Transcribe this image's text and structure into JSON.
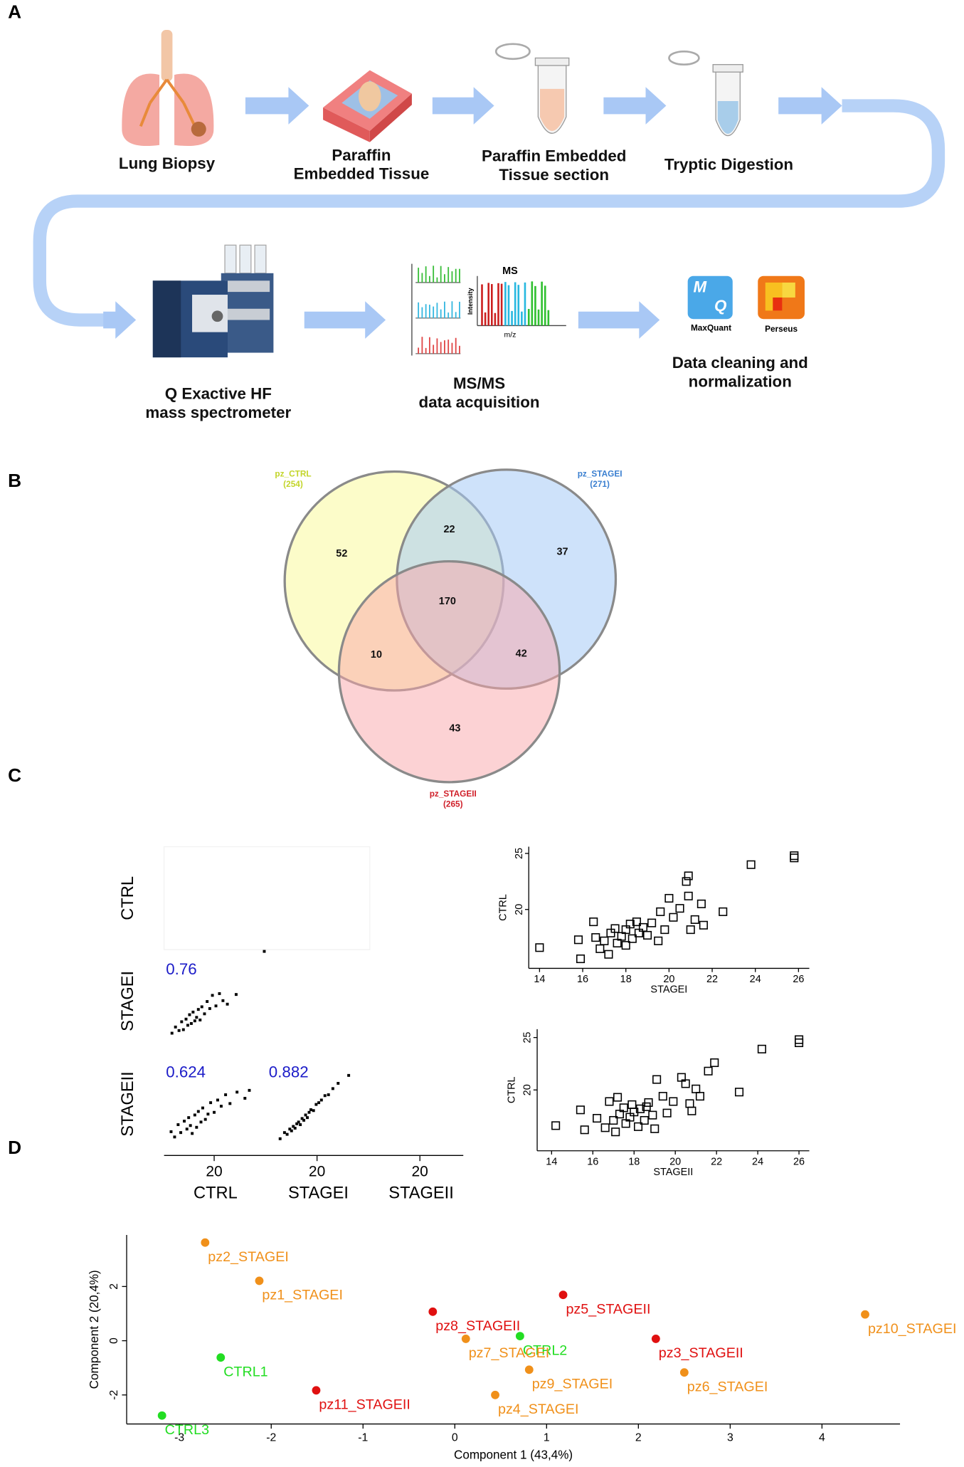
{
  "panel_labels": [
    "A",
    "B",
    "C",
    "D"
  ],
  "workflow": {
    "steps": [
      [
        "Lung Biopsy"
      ],
      [
        "Paraffin",
        "Embedded Tissue"
      ],
      [
        "Paraffin Embedded",
        "Tissue section"
      ],
      [
        "Tryptic Digestion"
      ],
      [
        "Q Exactive HF",
        "mass spectrometer"
      ],
      [
        "MS/MS",
        "data acquisition"
      ],
      [
        "Data cleaning and",
        "normalization"
      ]
    ],
    "spectrum_title": "MS",
    "intensity_label": "Intensity",
    "mz_label": "m/z",
    "software": [
      "MaxQuant",
      "Perseus"
    ],
    "icon_letters": [
      "M",
      "Q"
    ]
  },
  "venn": {
    "sets": [
      {
        "name": "pz_CTRL",
        "count": "(254)",
        "color": "#c3d52a"
      },
      {
        "name": "pz_STAGEI",
        "count": "(271)",
        "color": "#3a7fd0"
      },
      {
        "name": "pz_STAGEII",
        "count": "(265)",
        "color": "#d0202a"
      }
    ],
    "regions": [
      52,
      22,
      37,
      170,
      10,
      42,
      43
    ]
  },
  "chart_data": [
    {
      "type": "scatter_matrix",
      "variables": [
        "CTRL",
        "STAGEI",
        "STAGEII"
      ],
      "lim": [
        14.3,
        26
      ],
      "ticks": [
        20
      ],
      "color": "#000000",
      "label_color": "#1c1cc8",
      "cells": [
        {
          "pair": [
            "CTRL",
            "STAGEI"
          ],
          "r": 0.76,
          "x": [
            15.2,
            15.6,
            16,
            16.3,
            16.5,
            16.8,
            17,
            17.2,
            17.4,
            17.6,
            17.8,
            18,
            18.2,
            18.4,
            18.6,
            18.9,
            19.2,
            19.5,
            19.8,
            20.2,
            20.6,
            21,
            21.5,
            22.5,
            25.7
          ],
          "y": [
            16.5,
            17.2,
            16.8,
            17.8,
            16.9,
            18.1,
            17.4,
            18.6,
            17.6,
            18.9,
            17.9,
            18.3,
            19.2,
            18,
            19.5,
            18.7,
            20.1,
            19.3,
            20.8,
            19.6,
            21,
            20.2,
            19.8,
            20.9,
            25.8
          ]
        },
        {
          "pair": [
            "CTRL",
            "STAGEII"
          ],
          "r": 0.624,
          "x": [
            15.1,
            15.5,
            15.9,
            16.2,
            16.6,
            16.9,
            17.1,
            17.3,
            17.5,
            17.8,
            18,
            18.2,
            18.5,
            18.7,
            19,
            19.3,
            19.6,
            20,
            20.4,
            20.8,
            21.3,
            21.8,
            22.6,
            23.5,
            24
          ],
          "y": [
            17,
            16.4,
            17.8,
            16.9,
            18.2,
            17.3,
            18.6,
            17.7,
            16.8,
            18.9,
            17.5,
            19.3,
            18.1,
            19.7,
            18.4,
            19,
            20.3,
            19.2,
            20.6,
            19.9,
            21.2,
            20.2,
            21.5,
            20.8,
            21.7
          ]
        },
        {
          "pair": [
            "STAGEI",
            "STAGEII"
          ],
          "r": 0.882,
          "x": [
            15.8,
            16.3,
            16.6,
            16.9,
            17.1,
            17.3,
            17.5,
            17.7,
            17.9,
            18.1,
            18.3,
            18.5,
            18.7,
            18.9,
            19.1,
            19.3,
            19.6,
            19.9,
            20.2,
            20.5,
            20.9,
            21.3,
            21.8,
            22.4,
            23.6
          ],
          "y": [
            16.2,
            16.9,
            16.7,
            17.3,
            17.1,
            17.6,
            17.4,
            17.9,
            18.1,
            17.8,
            18.5,
            18.3,
            18.9,
            18.6,
            19.2,
            19.5,
            19.4,
            20.1,
            20.3,
            20.6,
            21.1,
            21.2,
            21.9,
            22.5,
            23.4
          ]
        }
      ]
    },
    {
      "type": "scatter",
      "marker": "square",
      "xlabel": "STAGEI",
      "ylabel": "CTRL",
      "xlim": [
        13.5,
        26.5
      ],
      "ylim": [
        14.75,
        25.6
      ],
      "xticks": [
        14,
        16,
        18,
        20,
        22,
        24,
        26
      ],
      "yticks": [
        20,
        25
      ],
      "color": "#000000",
      "x": [
        14,
        15.9,
        15.8,
        16.5,
        16.6,
        16.8,
        17,
        17.2,
        17.3,
        17.5,
        17.6,
        17.8,
        18,
        18,
        18.2,
        18.3,
        18.5,
        18.6,
        18.8,
        19,
        19.2,
        19.5,
        19.6,
        19.8,
        20,
        20.2,
        20.5,
        20.8,
        20.9,
        21,
        21.2,
        21.5,
        21.6,
        22.5,
        23.8,
        25.8,
        25.8,
        20.9
      ],
      "y": [
        16.6,
        15.6,
        17.3,
        18.9,
        17.5,
        16.5,
        17.2,
        16,
        17.9,
        18.3,
        17,
        17.6,
        18.2,
        16.8,
        18.7,
        17.4,
        18.9,
        17.9,
        18.4,
        17.7,
        18.8,
        17.2,
        19.8,
        18.2,
        21,
        19.3,
        20.1,
        22.5,
        21.2,
        18.2,
        19.1,
        20.5,
        18.6,
        19.8,
        24,
        24.6,
        24.8,
        23
      ]
    },
    {
      "type": "scatter",
      "marker": "square",
      "xlabel": "STAGEII",
      "ylabel": "CTRL",
      "xlim": [
        13.3,
        26.5
      ],
      "ylim": [
        14.2,
        25.8
      ],
      "xticks": [
        14,
        16,
        18,
        20,
        22,
        24,
        26
      ],
      "yticks": [
        20,
        25
      ],
      "color": "#000000",
      "x": [
        14.2,
        15.4,
        15.6,
        16.2,
        16.6,
        16.8,
        17,
        17.1,
        17.3,
        17.5,
        17.6,
        17.8,
        17.9,
        18,
        18.2,
        18.3,
        18.5,
        18.7,
        18.9,
        19.1,
        19.4,
        19.6,
        19.9,
        20.3,
        20.5,
        20.7,
        21,
        21.2,
        21.6,
        21.9,
        23.1,
        24.2,
        26,
        26,
        19,
        17.2,
        18.6,
        20.8
      ],
      "y": [
        16.6,
        18.1,
        16.2,
        17.3,
        16.4,
        18.9,
        17.1,
        16,
        17.7,
        18.3,
        16.8,
        17.4,
        18.6,
        17.9,
        16.5,
        18.2,
        17.1,
        18.8,
        17.6,
        21,
        19.4,
        17.8,
        18.9,
        21.2,
        20.6,
        18.7,
        20.1,
        19.4,
        21.8,
        22.6,
        19.8,
        23.9,
        24.5,
        24.8,
        16.3,
        19.3,
        18.4,
        18
      ]
    },
    {
      "type": "pca",
      "xlabel": "Component 1 (43,4%)",
      "ylabel": "Component 2 (20,4%)",
      "xlim": [
        -3.575,
        4.85
      ],
      "ylim": [
        -3.07,
        3.9
      ],
      "xticks": [
        -3,
        -2,
        -1,
        0,
        1,
        2,
        3,
        4
      ],
      "yticks": [
        -2,
        0,
        2
      ],
      "series": [
        {
          "color": "#22dd22",
          "labels": [
            "CTRL1",
            "CTRL2",
            "CTRL3"
          ],
          "x": [
            -2.55,
            0.71,
            -3.19
          ],
          "y": [
            -0.62,
            0.17,
            -2.76
          ]
        },
        {
          "color": "#f0901a",
          "labels": [
            "pz1_STAGEI",
            "pz2_STAGEI",
            "pz4_STAGEI",
            "pz6_STAGEI",
            "pz7_STAGEI",
            "pz9_STAGEI",
            "pz10_STAGEI"
          ],
          "x": [
            -2.13,
            -2.72,
            0.44,
            2.5,
            0.12,
            0.81,
            4.47
          ],
          "y": [
            2.21,
            3.62,
            -2.0,
            -1.17,
            0.07,
            -1.07,
            0.97
          ]
        },
        {
          "color": "#e01010",
          "labels": [
            "pz3_STAGEII",
            "pz5_STAGEII",
            "pz8_STAGEII",
            "pz11_STAGEII"
          ],
          "x": [
            2.19,
            1.18,
            -0.24,
            -1.51
          ],
          "y": [
            0.07,
            1.69,
            1.07,
            -1.83
          ]
        }
      ]
    }
  ]
}
